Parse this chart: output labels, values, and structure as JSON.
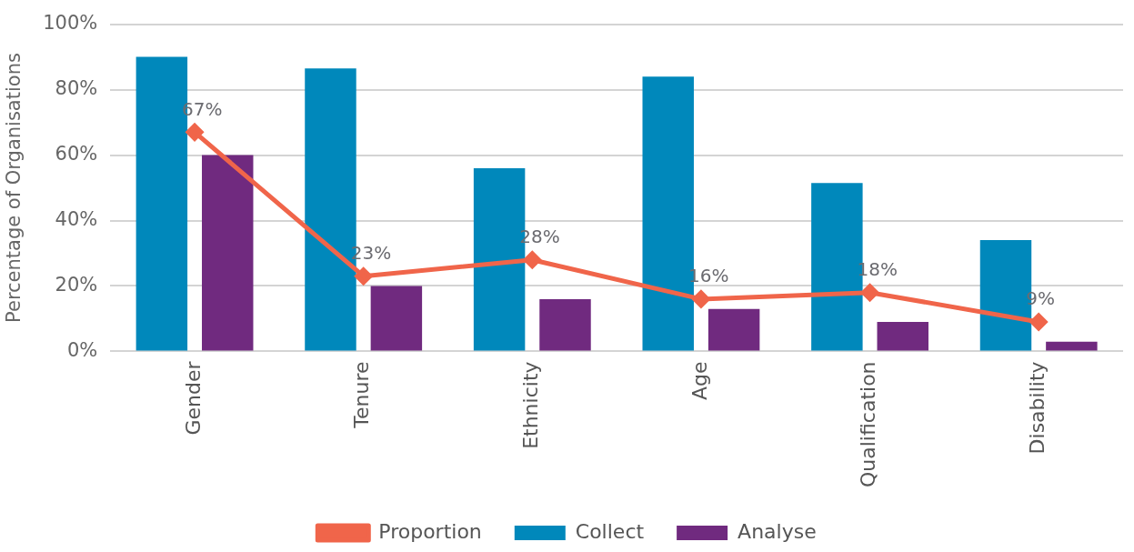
{
  "chart_data": {
    "type": "bar",
    "ylabel": "Percentage of Organisations",
    "categories": [
      "Gender",
      "Tenure",
      "Ethnicity",
      "Age",
      "Qualification",
      "Disability"
    ],
    "series": [
      {
        "name": "Collect",
        "color": "#0088bb",
        "values": [
          90,
          86.5,
          56,
          84,
          51.5,
          34
        ]
      },
      {
        "name": "Analyse",
        "color": "#702a7f",
        "values": [
          60,
          20,
          16,
          13,
          9,
          3
        ]
      },
      {
        "name": "Proportion",
        "type": "line",
        "color": "#f0654a",
        "marker": "diamond",
        "values": [
          67,
          23,
          28,
          16,
          18,
          9
        ],
        "value_labels": [
          "67%",
          "23%",
          "28%",
          "16%",
          "18%",
          "9%"
        ]
      }
    ],
    "ylim": [
      0,
      100
    ],
    "yticks": [
      {
        "value": 0,
        "label": "0%"
      },
      {
        "value": 20,
        "label": "20%"
      },
      {
        "value": 40,
        "label": "40%"
      },
      {
        "value": 60,
        "label": "60%"
      },
      {
        "value": 80,
        "label": "80%"
      },
      {
        "value": 100,
        "label": "100%"
      }
    ],
    "grid": "y",
    "legend": "bottom"
  }
}
